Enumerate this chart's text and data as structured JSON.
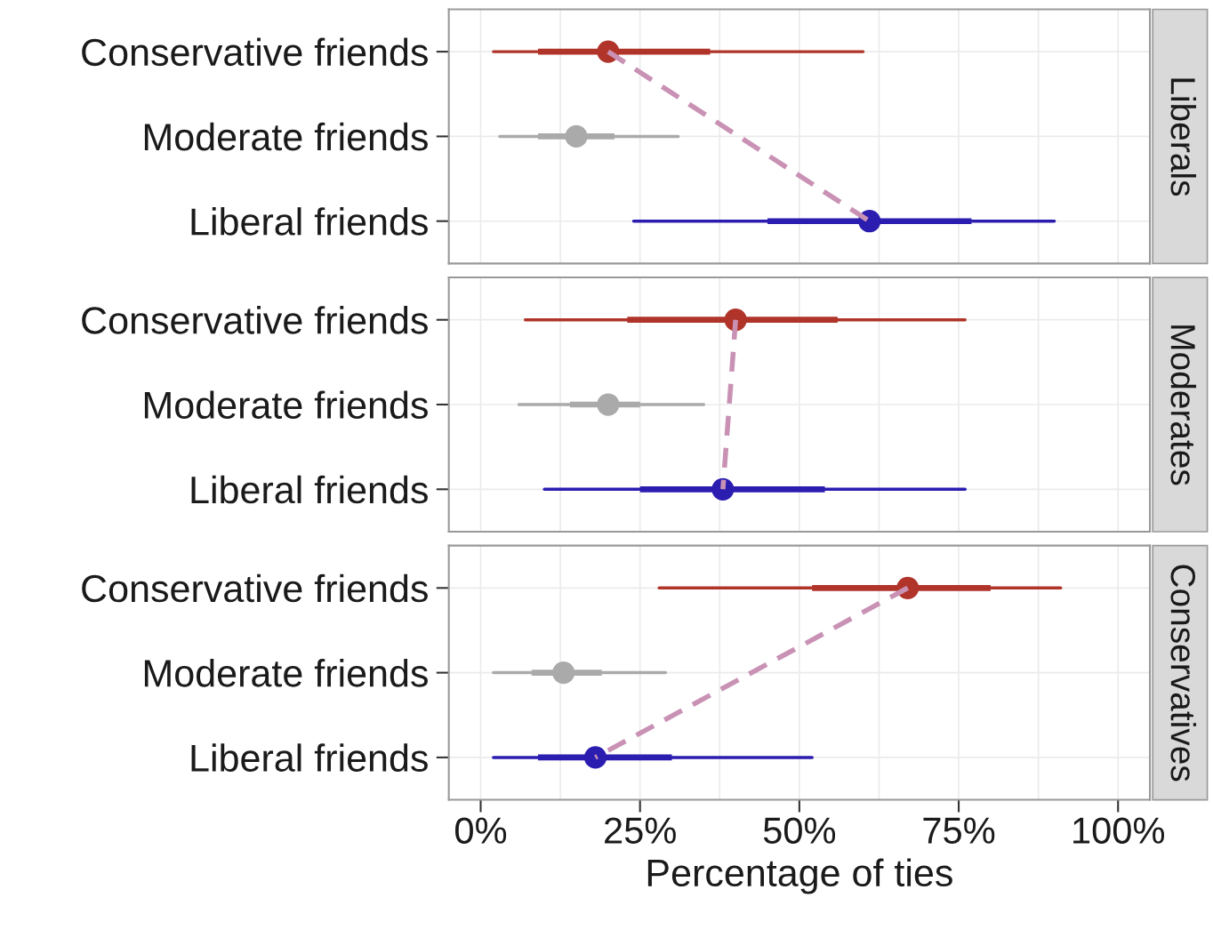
{
  "chart_data": [
    {
      "type": "box",
      "orientation": "horizontal",
      "annotations": [
        "Liberals"
      ],
      "categories": [
        "Conservative friends",
        "Moderate friends",
        "Liberal friends"
      ],
      "boxes": [
        {
          "low": 2,
          "q1": 9,
          "median": 20,
          "q3": 36,
          "high": 60
        },
        {
          "low": 3,
          "q1": 9,
          "median": 15,
          "q3": 21,
          "high": 31
        },
        {
          "low": 24,
          "q1": 45,
          "median": 61,
          "q3": 77,
          "high": 90
        }
      ],
      "colors": [
        "#b0342a",
        "#aaaaaa",
        "#2b1db0"
      ],
      "series": [
        {
          "type": "line",
          "values": [
            20,
            null,
            61
          ],
          "color": "#c992b5",
          "line_style": "dashed"
        }
      ],
      "xlim": [
        -5,
        105
      ],
      "xticks": [
        {
          "value": 0,
          "label": null
        },
        {
          "value": 12.5,
          "label": null
        },
        {
          "value": 25,
          "label": null
        },
        {
          "value": 37.5,
          "label": null
        },
        {
          "value": 50,
          "label": null
        },
        {
          "value": 62.5,
          "label": null
        },
        {
          "value": 75,
          "label": null
        },
        {
          "value": 87.5,
          "label": null
        },
        {
          "value": 100,
          "label": null
        }
      ],
      "grid": true,
      "tick_labels": "y"
    },
    {
      "type": "box",
      "orientation": "horizontal",
      "annotations": [
        "Moderates"
      ],
      "categories": [
        "Conservative friends",
        "Moderate friends",
        "Liberal friends"
      ],
      "boxes": [
        {
          "low": 7,
          "q1": 23,
          "median": 40,
          "q3": 56,
          "high": 76
        },
        {
          "low": 6,
          "q1": 14,
          "median": 20,
          "q3": 25,
          "high": 35
        },
        {
          "low": 10,
          "q1": 25,
          "median": 38,
          "q3": 54,
          "high": 76
        }
      ],
      "colors": [
        "#b0342a",
        "#aaaaaa",
        "#2b1db0"
      ],
      "series": [
        {
          "type": "line",
          "values": [
            40,
            null,
            38
          ],
          "color": "#c992b5",
          "line_style": "dashed"
        }
      ],
      "xlim": [
        -5,
        105
      ],
      "xticks": [
        {
          "value": 0,
          "label": null
        },
        {
          "value": 12.5,
          "label": null
        },
        {
          "value": 25,
          "label": null
        },
        {
          "value": 37.5,
          "label": null
        },
        {
          "value": 50,
          "label": null
        },
        {
          "value": 62.5,
          "label": null
        },
        {
          "value": 75,
          "label": null
        },
        {
          "value": 87.5,
          "label": null
        },
        {
          "value": 100,
          "label": null
        }
      ],
      "grid": true,
      "tick_labels": "y"
    },
    {
      "type": "box",
      "orientation": "horizontal",
      "annotations": [
        "Conservatives"
      ],
      "xlabel": "Percentage of ties",
      "categories": [
        "Conservative friends",
        "Moderate friends",
        "Liberal friends"
      ],
      "boxes": [
        {
          "low": 28,
          "q1": 52,
          "median": 67,
          "q3": 80,
          "high": 91
        },
        {
          "low": 2,
          "q1": 8,
          "median": 13,
          "q3": 19,
          "high": 29
        },
        {
          "low": 2,
          "q1": 9,
          "median": 18,
          "q3": 30,
          "high": 52
        }
      ],
      "colors": [
        "#b0342a",
        "#aaaaaa",
        "#2b1db0"
      ],
      "series": [
        {
          "type": "line",
          "values": [
            67,
            null,
            18
          ],
          "color": "#c992b5",
          "line_style": "dashed"
        }
      ],
      "xlim": [
        -5,
        105
      ],
      "xticks": [
        {
          "value": 0,
          "label": "0%"
        },
        {
          "value": 12.5,
          "label": null
        },
        {
          "value": 25,
          "label": "25%"
        },
        {
          "value": 37.5,
          "label": null
        },
        {
          "value": 50,
          "label": "50%"
        },
        {
          "value": 62.5,
          "label": null
        },
        {
          "value": 75,
          "label": "75%"
        },
        {
          "value": 87.5,
          "label": null
        },
        {
          "value": 100,
          "label": "100%"
        }
      ],
      "grid": true
    }
  ]
}
